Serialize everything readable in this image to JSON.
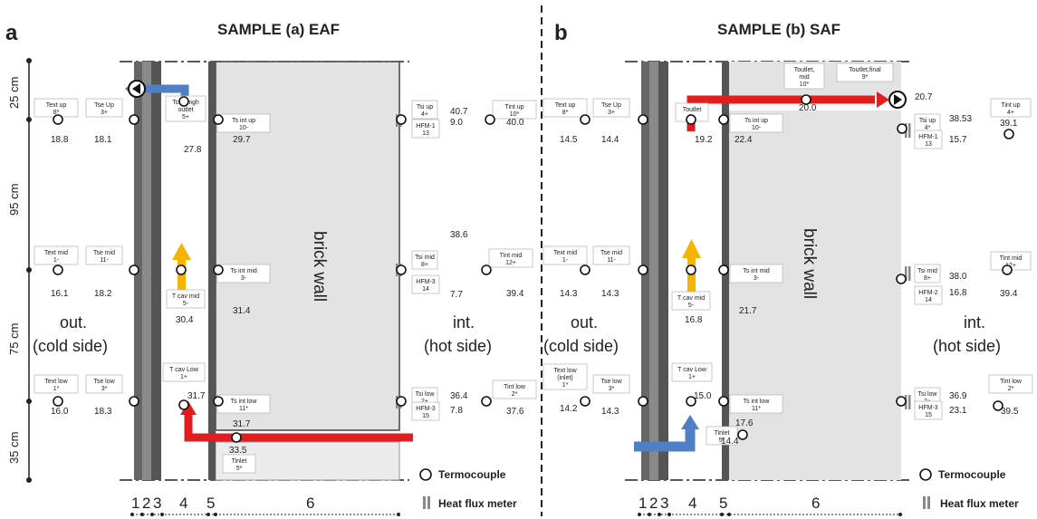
{
  "colors": {
    "hot_flow": "#e31d1d",
    "cold_flow": "#4f7fc4",
    "rising": "#f4b400",
    "wall_grey": "#e3e3e3",
    "layer_dark": "#555555"
  },
  "heights": [
    "25 cm",
    "95 cm",
    "75 cm",
    "35 cm"
  ],
  "legend": {
    "thermocouple": "Termocouple",
    "heat_flux": "Heat flux meter"
  },
  "layers": [
    "1",
    "2",
    "3",
    "4",
    "5",
    "6"
  ],
  "panels": [
    {
      "letter": "a",
      "title": "SAMPLE (a) EAF",
      "out_label_1": "out.",
      "out_label_2": "(cold side)",
      "int_label_1": "int.",
      "int_label_2": "(hot side)",
      "wall_label": "brick wall",
      "sensors": [
        {
          "label": [
            "Text up",
            "8*"
          ],
          "value": "18.8"
        },
        {
          "label": [
            "Tse Up",
            "3+"
          ],
          "value": "18.1"
        },
        {
          "label": [
            "Tcav high",
            "outlet",
            "5+"
          ],
          "value": "27.8"
        },
        {
          "label": [
            "Ts int up",
            "10-"
          ],
          "value": "29.7"
        },
        {
          "label": [
            "Tsi up",
            "4+"
          ],
          "value": "40.7"
        },
        {
          "label": [
            "HFM-1",
            "13"
          ],
          "value": "9.0"
        },
        {
          "label": [
            "Tint up",
            "10*"
          ],
          "value": "40.0"
        },
        {
          "label": [
            "Text mid",
            "1-"
          ],
          "value": "16.1"
        },
        {
          "label": [
            "Tse mid",
            "11-"
          ],
          "value": "18.2"
        },
        {
          "label": [
            "T cav mid",
            "5-"
          ],
          "value": "30.4"
        },
        {
          "label": [
            "Ts int mid",
            "3-"
          ],
          "value": "31.4"
        },
        {
          "label": [
            "Tsi mid",
            "8+"
          ],
          "value": "38.6"
        },
        {
          "label": [
            "HFM-3",
            "14"
          ],
          "value": "7.7"
        },
        {
          "label": [
            "Tint mid",
            "12+"
          ],
          "value": "39.4"
        },
        {
          "label": [
            "Text low",
            "1*"
          ],
          "value": "16.0"
        },
        {
          "label": [
            "Tse low",
            "3*"
          ],
          "value": "18.3"
        },
        {
          "label": [
            "T cav Low",
            "1+"
          ],
          "value": "31.7"
        },
        {
          "label": [
            "Ts int low",
            "11*"
          ],
          "value": "31.7"
        },
        {
          "label": [
            "Tsi low",
            "2+"
          ],
          "value": "36.4"
        },
        {
          "label": [
            "HFM-3",
            "15"
          ],
          "value": "7.8"
        },
        {
          "label": [
            "Tint low",
            "2*"
          ],
          "value": "37.6"
        },
        {
          "label": [
            "Tinlet",
            "5*"
          ],
          "value": "33.5"
        }
      ]
    },
    {
      "letter": "b",
      "title": "SAMPLE (b) SAF",
      "out_label_1": "out.",
      "out_label_2": "(cold side)",
      "int_label_1": "int.",
      "int_label_2": "(hot side)",
      "wall_label": "brick wall",
      "sensors": [
        {
          "label": [
            "Text up",
            "8*"
          ],
          "value": "14.5"
        },
        {
          "label": [
            "Tse Up",
            "3+"
          ],
          "value": "14.4"
        },
        {
          "label": [
            "Toutlet",
            "6+"
          ],
          "value": "19.2"
        },
        {
          "label": [
            "Ts int up",
            "10-"
          ],
          "value": "22.4"
        },
        {
          "label": [
            "Toutlet,",
            "mid",
            "10*"
          ],
          "value": "20.0"
        },
        {
          "label": [
            "Toutlet,final",
            "9*"
          ],
          "value": "20.7"
        },
        {
          "label": [
            "Tsi up",
            "4*"
          ],
          "value": "38.53"
        },
        {
          "label": [
            "HFM-1",
            "13"
          ],
          "value": "15.7"
        },
        {
          "label": [
            "Tint up",
            "4+"
          ],
          "value": "39.1"
        },
        {
          "label": [
            "Text mid",
            "1-"
          ],
          "value": "14.3"
        },
        {
          "label": [
            "Tse mid",
            "11-"
          ],
          "value": "14.3"
        },
        {
          "label": [
            "T cav mid",
            "5-"
          ],
          "value": "16.8"
        },
        {
          "label": [
            "Ts int mid",
            "3-"
          ],
          "value": "21.7"
        },
        {
          "label": [
            "Tsi mid",
            "8+"
          ],
          "value": "38.0"
        },
        {
          "label": [
            "HFM-2",
            "14"
          ],
          "value": "16.8"
        },
        {
          "label": [
            "Tint mid",
            "12+"
          ],
          "value": "39.4"
        },
        {
          "label": [
            "Text low",
            "(inlet)",
            "1*"
          ],
          "value": "14.2"
        },
        {
          "label": [
            "Tse low",
            "3*"
          ],
          "value": "14.3"
        },
        {
          "label": [
            "T cav Low",
            "1+"
          ],
          "value": "15.0"
        },
        {
          "label": [
            "Ts int low",
            "11*"
          ],
          "value": "17.6"
        },
        {
          "label": [
            "Tinlet",
            "5*"
          ],
          "value": "14.4"
        },
        {
          "label": [
            "Tsi low",
            "2+"
          ],
          "value": "36.9"
        },
        {
          "label": [
            "HFM-3",
            "15"
          ],
          "value": "23.1"
        },
        {
          "label": [
            "Tint low",
            "2*"
          ],
          "value": "39.5"
        }
      ]
    }
  ]
}
